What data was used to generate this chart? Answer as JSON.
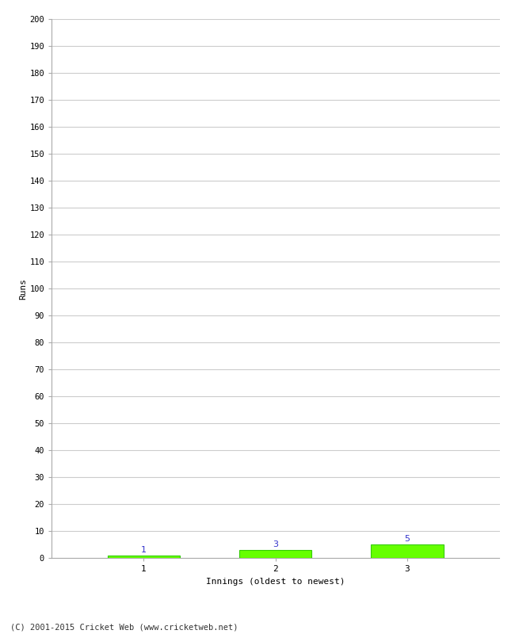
{
  "categories": [
    "1",
    "2",
    "3"
  ],
  "values": [
    1,
    3,
    5
  ],
  "bar_color": "#66ff00",
  "bar_edge_color": "#33cc00",
  "xlabel": "Innings (oldest to newest)",
  "ylabel": "Runs",
  "ylim": [
    0,
    200
  ],
  "value_labels": [
    1,
    3,
    5
  ],
  "value_label_color": "#3333cc",
  "footer_text": "(C) 2001-2015 Cricket Web (www.cricketweb.net)",
  "background_color": "#ffffff",
  "grid_color": "#cccccc",
  "bar_width": 0.55,
  "spine_color": "#aaaaaa"
}
